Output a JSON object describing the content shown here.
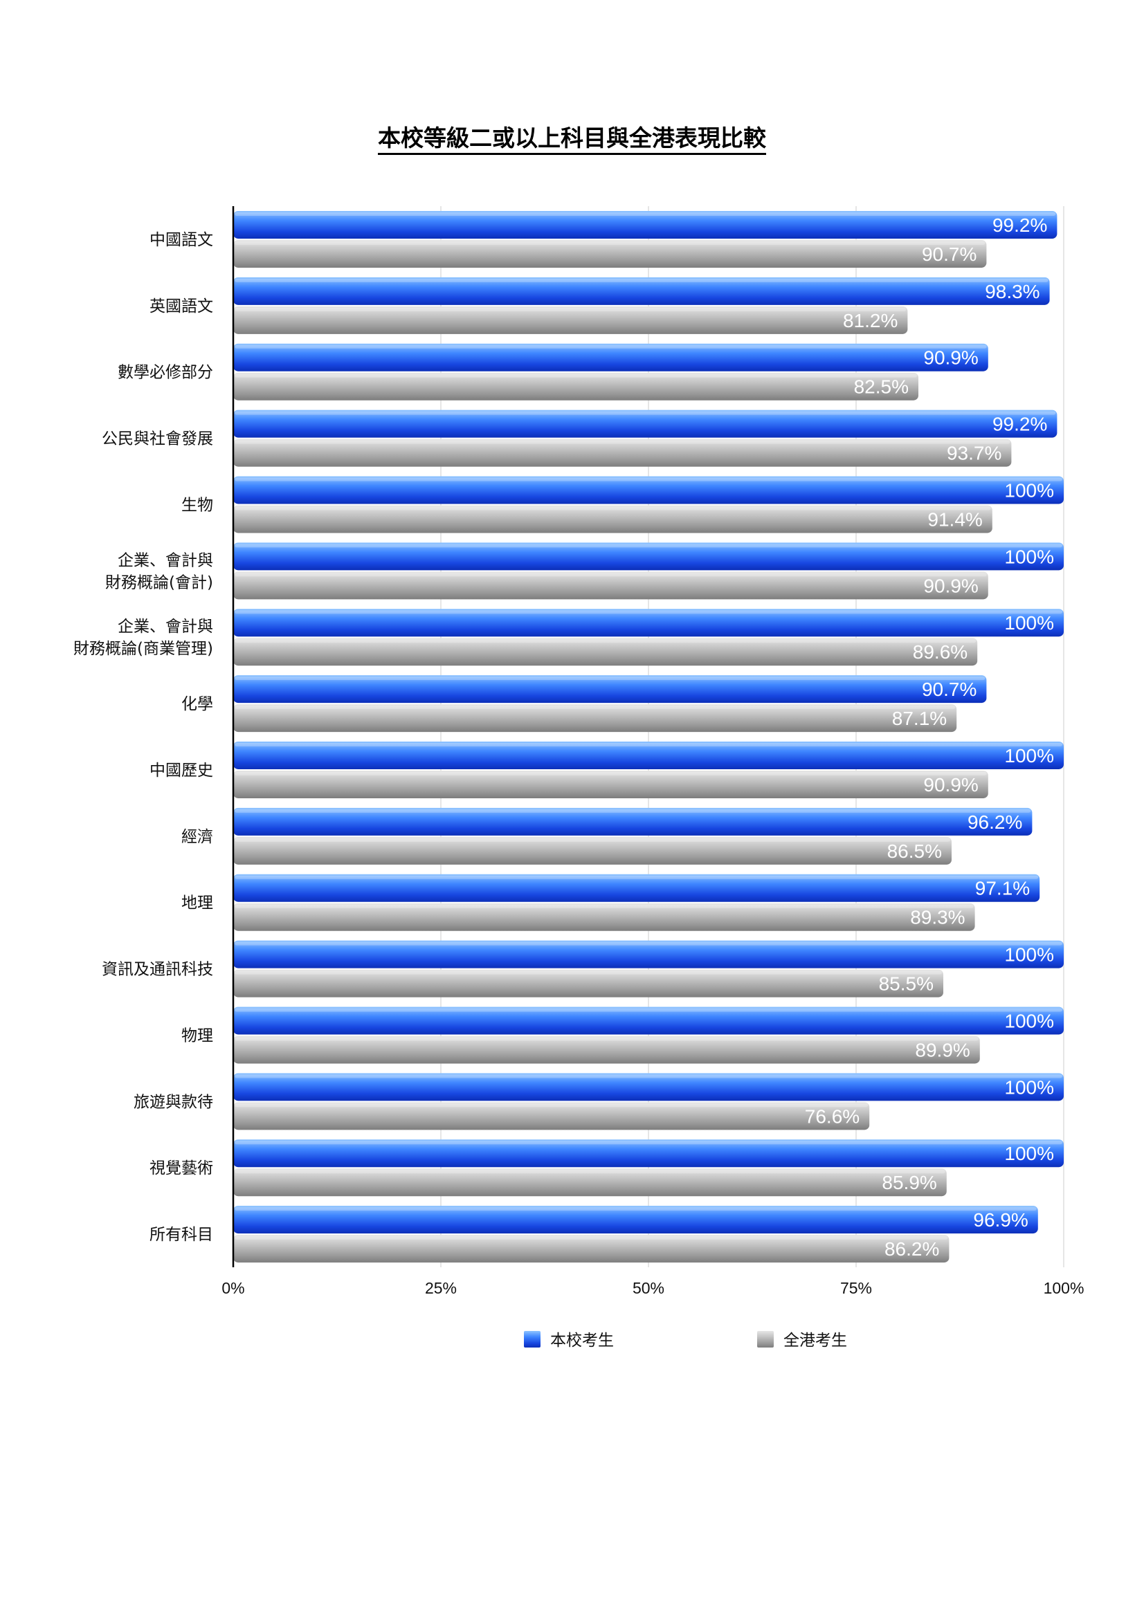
{
  "chart_data": {
    "type": "bar",
    "orientation": "horizontal",
    "title": "本校等級二或以上科目與全港表現比較",
    "categories": [
      [
        "中國語文"
      ],
      [
        "英國語文"
      ],
      [
        "數學必修部分"
      ],
      [
        "公民與社會發展"
      ],
      [
        "生物"
      ],
      [
        "企業、會計與",
        "財務概論(會計)"
      ],
      [
        "企業、會計與",
        "財務概論(商業管理)"
      ],
      [
        "化學"
      ],
      [
        "中國歷史"
      ],
      [
        "經濟"
      ],
      [
        "地理"
      ],
      [
        "資訊及通訊科技"
      ],
      [
        "物理"
      ],
      [
        "旅遊與款待"
      ],
      [
        "視覺藝術"
      ],
      [
        "所有科目"
      ]
    ],
    "series": [
      {
        "name": "本校考生",
        "color": "#1a5cf0",
        "values": [
          99.2,
          98.3,
          90.9,
          99.2,
          100,
          100,
          100,
          90.7,
          100,
          96.2,
          97.1,
          100,
          100,
          100,
          100,
          96.9
        ],
        "labels": [
          "99.2%",
          "98.3%",
          "90.9%",
          "99.2%",
          "100%",
          "100%",
          "100%",
          "90.7%",
          "100%",
          "96.2%",
          "97.1%",
          "100%",
          "100%",
          "100%",
          "100%",
          "96.9%"
        ]
      },
      {
        "name": "全港考生",
        "color": "#9e9e9e",
        "values": [
          90.7,
          81.2,
          82.5,
          93.7,
          91.4,
          90.9,
          89.6,
          87.1,
          90.9,
          86.5,
          89.3,
          85.5,
          89.9,
          76.6,
          85.9,
          86.2
        ],
        "labels": [
          "90.7%",
          "81.2%",
          "82.5%",
          "93.7%",
          "91.4%",
          "90.9%",
          "89.6%",
          "87.1%",
          "90.9%",
          "86.5%",
          "89.3%",
          "85.5%",
          "89.9%",
          "76.6%",
          "85.9%",
          "86.2%"
        ]
      }
    ],
    "xlim": [
      0,
      100
    ],
    "xticks": [
      0,
      25,
      50,
      75,
      100
    ],
    "xtick_labels": [
      "0%",
      "25%",
      "50%",
      "75%",
      "100%"
    ],
    "grid": true,
    "legend_position": "bottom"
  }
}
